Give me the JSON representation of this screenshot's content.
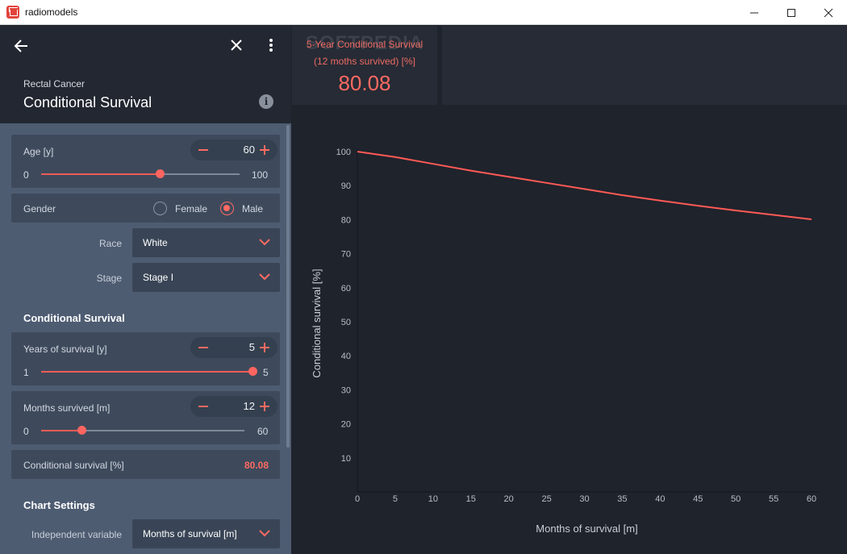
{
  "window": {
    "title": "radiomodels"
  },
  "header": {
    "subtitle": "Rectal Cancer",
    "title": "Conditional Survival",
    "info_icon": "info-icon"
  },
  "inputs": {
    "age": {
      "label": "Age [y]",
      "value": "60",
      "min": "0",
      "max": "100",
      "fraction": 0.6
    },
    "gender": {
      "label": "Gender",
      "options": [
        "Female",
        "Male"
      ],
      "selected": "Male"
    },
    "race": {
      "label": "Race",
      "value": "White"
    },
    "stage": {
      "label": "Stage",
      "value": "Stage I"
    }
  },
  "conditional": {
    "section_title": "Conditional Survival",
    "years": {
      "label": "Years of survival [y]",
      "value": "5",
      "min": "1",
      "max": "5",
      "fraction": 1.0
    },
    "months": {
      "label": "Months survived [m]",
      "value": "12",
      "min": "0",
      "max": "60",
      "fraction": 0.2
    },
    "result": {
      "label": "Conditional survival [%]",
      "value": "80.08"
    }
  },
  "chart_settings": {
    "section_title": "Chart Settings",
    "independent": {
      "label": "Independent variable",
      "value": "Months of survival [m]"
    }
  },
  "summary": {
    "label_line1": "5-Year Conditional Survival",
    "label_line2": "(12 moths survived) [%]",
    "value": "80.08",
    "watermark": "SOFTPEDIA"
  },
  "colors": {
    "accent": "#ff6a62",
    "panel": "#4e5c72",
    "card": "#3e4a5c",
    "chart_bg": "#1f232c"
  },
  "chart_data": {
    "type": "line",
    "xlabel": "Months of survival [m]",
    "ylabel": "Conditional survival [%]",
    "x_ticks": [
      "0",
      "5",
      "10",
      "15",
      "20",
      "25",
      "30",
      "35",
      "40",
      "45",
      "50",
      "55",
      "60"
    ],
    "y_ticks": [
      "10",
      "20",
      "30",
      "40",
      "50",
      "60",
      "70",
      "80",
      "90",
      "100"
    ],
    "xlim": [
      0,
      60
    ],
    "ylim": [
      0,
      100
    ],
    "series": [
      {
        "color": "#ff5a55",
        "x": [
          0,
          5,
          10,
          15,
          20,
          25,
          30,
          35,
          40,
          45,
          50,
          55,
          60
        ],
        "y": [
          100,
          98.4,
          96.4,
          94.4,
          92.6,
          90.8,
          89.0,
          87.2,
          85.6,
          84.1,
          82.7,
          81.4,
          80.1
        ]
      }
    ],
    "grid": false
  }
}
